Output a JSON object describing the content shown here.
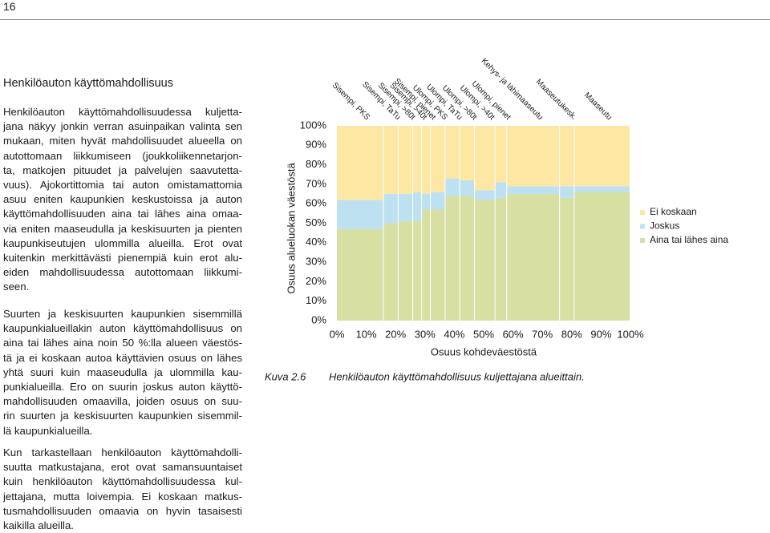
{
  "page_number": "16",
  "heading": "Henkilöauton käyttömahdollisuus",
  "paragraphs": [
    [
      "Henkilöauton käyttömahdollisuudessa kuljetta-",
      "jana näkyy jonkin verran asuinpaikan valinta sen",
      "mukaan, miten hyvät mahdollisuudet alueella on",
      "autottomaan liikkumiseen (joukkoliikennetarjon-",
      "ta, matkojen pituudet ja palvelujen saavutetta-",
      "vuus). Ajokortittomia tai auton omistamattomia",
      "asuu eniten kaupunkien keskustoissa ja auton",
      "käyttömahdollisuuden aina tai lähes aina omaa-",
      "via eniten maaseudulla ja keskisuurten ja pienten",
      "kaupunkiseutujen ulommilla alueilla. Erot ovat",
      "kuitenkin merkittävästi pienempiä kuin erot alu-",
      "eiden mahdollisuudessa autottomaan liikkumi-",
      "seen."
    ],
    [
      "Suurten ja keskisuurten kaupunkien sisemmillä",
      "kaupunkialueillakin auton käyttömahdollisuus on",
      "aina tai lähes aina noin 50 %:lla alueen väestös-",
      "tä ja ei koskaan autoa käyttävien osuus on lähes",
      "yhtä suuri kuin maaseudulla ja ulommilla kau-",
      "punkialueilla. Ero on suurin joskus auton käyttö-",
      "mahdollisuuden omaavilla, joiden osuus on suu-",
      "rin suurten ja keskisuurten kaupunkien sisemmil-",
      "lä kaupunkialueilla."
    ],
    [
      "Kun tarkastellaan henkilöauton käyttömahdolli-",
      "suutta matkustajana, erot ovat samansuuntaiset",
      "kuin henkilöauton käyttömahdollisuudessa kul-",
      "jettajana, mutta loivempia. Ei koskaan matkus-",
      "tusmahdollisuuden omaavia on hyvin tasaisesti",
      "kaikilla alueilla."
    ]
  ],
  "figure_label": "Kuva 2.6",
  "chart_data": {
    "type": "marimekko",
    "caption": "Henkilöauton käyttömahdollisuus kuljettajana alueittain.",
    "x_label": "Osuus kohdeväestöstä",
    "y_label": "Osuus alueluokan väestöstä",
    "categories": [
      "Sisempi, PKS",
      "Sisempi, TaTu",
      "Sisempi, >80t",
      "Sisempi, >40t",
      "Sisempi, pienet",
      "Ulompi, PKS",
      "Ulompi, TaTu",
      "Ulompi, >80t",
      "Ulompi, >40t",
      "Ulompi, pienet",
      "Kehys- ja lähimaaseutu",
      "Maaseutukesk.",
      "Maaseutu"
    ],
    "widths": [
      16,
      5,
      5,
      3,
      3,
      5,
      5,
      5,
      7,
      4,
      18,
      5,
      19
    ],
    "series": [
      {
        "name": "Aina tai lähes aina",
        "color": "#d8dfa3",
        "values": [
          47,
          50,
          51,
          51,
          57,
          57,
          64,
          64,
          62,
          63,
          65,
          63,
          66
        ]
      },
      {
        "name": "Joskus",
        "color": "#bde1f1",
        "values": [
          15,
          15,
          14,
          15,
          8,
          9,
          9,
          8,
          5,
          8,
          4,
          6,
          3
        ]
      },
      {
        "name": "Ei koskaan",
        "color": "#fde7a3",
        "values": [
          38,
          35,
          35,
          34,
          35,
          34,
          27,
          28,
          33,
          29,
          31,
          31,
          31
        ]
      }
    ],
    "xlim": [
      0,
      100
    ],
    "ylim": [
      0,
      100
    ],
    "xticks": [
      {
        "value": 0,
        "label": "0%"
      },
      {
        "value": 10,
        "label": "10%"
      },
      {
        "value": 20,
        "label": "20%"
      },
      {
        "value": 30,
        "label": "30%"
      },
      {
        "value": 40,
        "label": "40%"
      },
      {
        "value": 50,
        "label": "50%"
      },
      {
        "value": 60,
        "label": "60%"
      },
      {
        "value": 70,
        "label": "70%"
      },
      {
        "value": 80,
        "label": "80%"
      },
      {
        "value": 90,
        "label": "90%"
      },
      {
        "value": 100,
        "label": "100%"
      }
    ],
    "yticks": [
      {
        "value": 0,
        "label": "0%"
      },
      {
        "value": 10,
        "label": "10%"
      },
      {
        "value": 20,
        "label": "20%"
      },
      {
        "value": 30,
        "label": "30%"
      },
      {
        "value": 40,
        "label": "40%"
      },
      {
        "value": 50,
        "label": "50%"
      },
      {
        "value": 60,
        "label": "60%"
      },
      {
        "value": 70,
        "label": "70%"
      },
      {
        "value": 80,
        "label": "80%"
      },
      {
        "value": 90,
        "label": "90%"
      },
      {
        "value": 100,
        "label": "100%"
      }
    ]
  }
}
